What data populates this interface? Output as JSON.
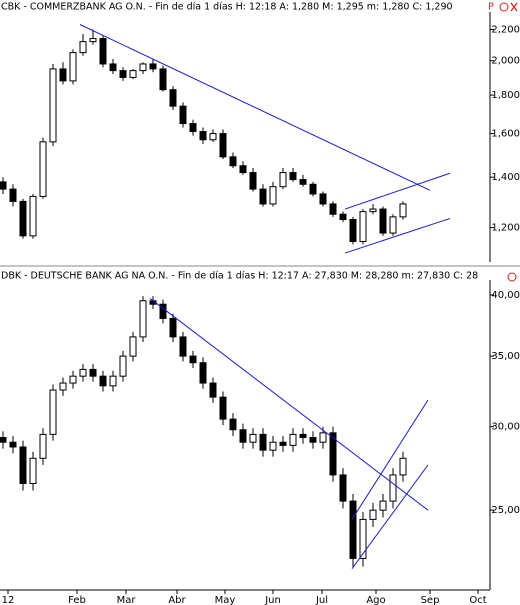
{
  "chart_data": [
    {
      "type": "candlestick",
      "title": "CBK - COMMERZBANK AG O.N. - Fin de día 1 días  H: 12:18  A: 1,280  M: 1,295  m: 1,280  C: 1,290",
      "status": "P",
      "log_scale": true,
      "ylim": [
        1080,
        2300
      ],
      "yticks": [
        {
          "value": 1200,
          "label": "1,200"
        },
        {
          "value": 1400,
          "label": "1,400"
        },
        {
          "value": 1600,
          "label": "1,600"
        },
        {
          "value": 1800,
          "label": "1,800"
        },
        {
          "value": 2000,
          "label": "2,000"
        },
        {
          "value": 2200,
          "label": "2,200"
        }
      ],
      "xlim": [
        -0.3,
        48.7
      ],
      "open": [
        1380,
        1350,
        1300,
        1170,
        1320,
        1560,
        1950,
        1880,
        2050,
        2120,
        2140,
        1980,
        1940,
        1900,
        1940,
        1980,
        1950,
        1830,
        1740,
        1650,
        1610,
        1570,
        1600,
        1490,
        1450,
        1420,
        1350,
        1290,
        1360,
        1420,
        1390,
        1370,
        1330,
        1290,
        1250,
        1230,
        1150,
        1260,
        1270,
        1180,
        1240
      ],
      "high": [
        1400,
        1370,
        1310,
        1330,
        1580,
        1980,
        1990,
        2070,
        2170,
        2200,
        2160,
        2010,
        1960,
        1950,
        1990,
        2010,
        1970,
        1850,
        1760,
        1670,
        1630,
        1620,
        1620,
        1510,
        1470,
        1440,
        1370,
        1380,
        1440,
        1440,
        1410,
        1380,
        1340,
        1300,
        1260,
        1240,
        1270,
        1290,
        1280,
        1250,
        1300
      ],
      "low": [
        1330,
        1280,
        1160,
        1160,
        1310,
        1540,
        1860,
        1860,
        2030,
        2100,
        1960,
        1920,
        1880,
        1890,
        1920,
        1930,
        1820,
        1720,
        1630,
        1590,
        1550,
        1560,
        1480,
        1440,
        1410,
        1340,
        1280,
        1280,
        1350,
        1380,
        1360,
        1320,
        1280,
        1240,
        1220,
        1140,
        1140,
        1250,
        1170,
        1170,
        1230
      ],
      "close": [
        1350,
        1300,
        1170,
        1320,
        1560,
        1950,
        1880,
        2050,
        2120,
        2140,
        1980,
        1940,
        1900,
        1940,
        1980,
        1950,
        1830,
        1740,
        1650,
        1610,
        1570,
        1600,
        1490,
        1450,
        1420,
        1350,
        1290,
        1360,
        1420,
        1390,
        1370,
        1330,
        1290,
        1250,
        1230,
        1150,
        1260,
        1270,
        1180,
        1240,
        1290
      ],
      "trendlines": [
        {
          "x": [
            7.7,
            42.7
          ],
          "y": [
            2234,
            1345
          ]
        },
        {
          "x": [
            34.2,
            44.7
          ],
          "y": [
            1110,
            1234
          ]
        },
        {
          "x": [
            34.2,
            44.7
          ],
          "y": [
            1270,
            1417
          ]
        }
      ],
      "trend_color": "#1c1ccc"
    },
    {
      "type": "candlestick",
      "title": "DBK - DEUTSCHE BANK AG NA O.N. - Fin de día 1 días  H: 12:17  A: 27,830  M: 28,280  m: 27,830  C: 28",
      "log_scale": true,
      "ylim": [
        21,
        41.06
      ],
      "yticks": [
        {
          "value": 25,
          "label": "25,00"
        },
        {
          "value": 30,
          "label": "30,00"
        },
        {
          "value": 35,
          "label": "35,00"
        },
        {
          "value": 40,
          "label": "40,00"
        }
      ],
      "xlim": [
        -0.3,
        48.7
      ],
      "xticks": [
        {
          "value": 0.5,
          "label": "12"
        },
        {
          "value": 7.4,
          "label": "Feb"
        },
        {
          "value": 12.3,
          "label": "Mar"
        },
        {
          "value": 17.4,
          "label": "Abr"
        },
        {
          "value": 22.2,
          "label": "May"
        },
        {
          "value": 27,
          "label": "Jun"
        },
        {
          "value": 31.9,
          "label": "Jul"
        },
        {
          "value": 37.3,
          "label": "Ago"
        },
        {
          "value": 42.7,
          "label": "Sep"
        },
        {
          "value": 47.5,
          "label": "Oct"
        }
      ],
      "open": [
        29.3,
        29.0,
        28.7,
        26.5,
        28.0,
        29.5,
        32.5,
        33.0,
        33.5,
        34.0,
        33.5,
        32.8,
        33.5,
        35.0,
        36.5,
        39.5,
        39.2,
        38.0,
        36.5,
        35.0,
        34.5,
        33.0,
        32.0,
        30.5,
        29.8,
        29.0,
        29.5,
        28.5,
        29.0,
        28.8,
        29.5,
        29.3,
        29.0,
        29.6,
        27.0,
        25.5,
        22.5,
        24.5,
        25.0,
        25.5,
        27.0
      ],
      "high": [
        29.7,
        29.4,
        29.1,
        28.4,
        29.9,
        32.9,
        33.4,
        33.9,
        34.4,
        34.4,
        33.9,
        33.9,
        35.4,
        36.9,
        39.9,
        39.9,
        39.6,
        38.4,
        36.9,
        35.4,
        34.9,
        33.4,
        32.4,
        30.9,
        30.2,
        29.9,
        29.9,
        29.4,
        29.4,
        29.9,
        29.9,
        29.7,
        30.0,
        30.0,
        27.4,
        25.9,
        24.9,
        25.4,
        25.9,
        27.4,
        28.4
      ],
      "low": [
        28.6,
        28.3,
        26.1,
        26.1,
        27.6,
        29.1,
        32.1,
        32.6,
        33.1,
        33.1,
        32.4,
        32.4,
        33.1,
        34.6,
        36.1,
        38.8,
        37.6,
        36.1,
        34.6,
        34.1,
        32.6,
        31.6,
        30.1,
        29.4,
        28.6,
        28.6,
        28.1,
        28.1,
        28.4,
        28.4,
        28.9,
        28.6,
        28.6,
        26.6,
        25.1,
        22.1,
        22.1,
        24.1,
        24.6,
        25.1,
        26.6
      ],
      "close": [
        29.0,
        28.7,
        26.5,
        28.0,
        29.5,
        32.5,
        33.0,
        33.5,
        34.0,
        33.5,
        32.8,
        33.5,
        35.0,
        36.5,
        39.5,
        39.2,
        38.0,
        36.5,
        35.0,
        34.5,
        33.0,
        32.0,
        30.5,
        29.8,
        29.0,
        29.5,
        28.5,
        29.0,
        28.8,
        29.5,
        29.3,
        29.0,
        29.6,
        27.0,
        25.5,
        22.5,
        24.5,
        25.0,
        25.5,
        27.0,
        28.0
      ],
      "trendlines": [
        {
          "x": [
            14.7,
            42.5
          ],
          "y": [
            39.7,
            25.0
          ]
        },
        {
          "x": [
            34.9,
            42.5
          ],
          "y": [
            22.0,
            27.6
          ]
        },
        {
          "x": [
            34.9,
            42.5
          ],
          "y": [
            24.5,
            31.8
          ]
        }
      ],
      "trend_color": "#1c1ccc"
    }
  ]
}
